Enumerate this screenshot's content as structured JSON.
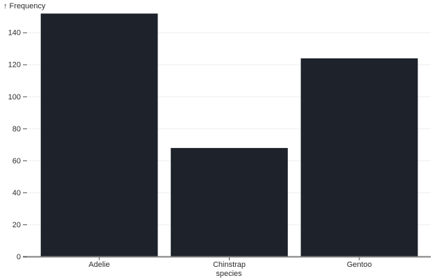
{
  "chart_data": {
    "type": "bar",
    "title": "",
    "ylabel": "↑ Frequency",
    "xlabel": "species",
    "categories": [
      "Adelie",
      "Chinstrap",
      "Gentoo"
    ],
    "values": [
      152,
      68,
      124
    ],
    "yticks": [
      0,
      20,
      40,
      60,
      80,
      100,
      120,
      140
    ],
    "ylim": [
      0,
      152
    ],
    "grid": true,
    "legend": "none",
    "colors": {
      "bar": "#1e222a",
      "gridline": "#eeeeee",
      "axis_line": "#7f7f7f",
      "tick_mark": "#4a4a4a",
      "tick_text": "#2b2b2b",
      "background": "#ffffff"
    }
  }
}
